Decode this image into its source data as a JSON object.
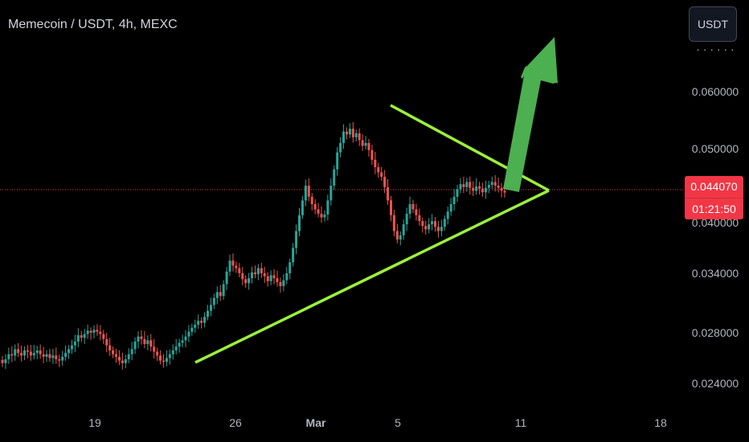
{
  "header": {
    "title": "Memecoin / USDT, 4h, MEXC"
  },
  "toolbar": {
    "currency_label": "USDT"
  },
  "price_tag": {
    "price": "0.044070",
    "timer": "01:21:50"
  },
  "colors": {
    "up": "#26a69a",
    "down": "#ef5350",
    "trendline": "#9cf03c",
    "arrow": "#4caf50",
    "price_line": "#f23645"
  },
  "chart_data": {
    "type": "candlestick",
    "yticks": [
      "0.060000",
      "0.050000",
      "0.040000",
      "0.034000",
      "0.028000",
      "0.024000"
    ],
    "xticks": [
      "19",
      "26",
      "Mar",
      "5",
      "11",
      "18"
    ],
    "last_price": 0.04407,
    "closes": [
      0.0256,
      0.0259,
      0.0263,
      0.0262,
      0.0267,
      0.0264,
      0.0262,
      0.0266,
      0.0265,
      0.0262,
      0.0264,
      0.0266,
      0.0263,
      0.0261,
      0.0263,
      0.026,
      0.0262,
      0.0259,
      0.0258,
      0.0261,
      0.0264,
      0.0267,
      0.027,
      0.0273,
      0.0278,
      0.0276,
      0.0279,
      0.0282,
      0.028,
      0.0283,
      0.0281,
      0.0279,
      0.0275,
      0.027,
      0.0266,
      0.0263,
      0.0261,
      0.0258,
      0.0256,
      0.0259,
      0.0263,
      0.0267,
      0.0273,
      0.0277,
      0.0275,
      0.0271,
      0.0274,
      0.0269,
      0.0265,
      0.0262,
      0.0258,
      0.0257,
      0.026,
      0.0263,
      0.0266,
      0.0269,
      0.0272,
      0.0274,
      0.0277,
      0.0281,
      0.0285,
      0.0288,
      0.0292,
      0.029,
      0.0296,
      0.0302,
      0.0308,
      0.0315,
      0.0321,
      0.0317,
      0.0329,
      0.0342,
      0.0355,
      0.0349,
      0.0346,
      0.034,
      0.0334,
      0.033,
      0.0335,
      0.0341,
      0.0339,
      0.0346,
      0.034,
      0.0337,
      0.0332,
      0.0338,
      0.0335,
      0.0331,
      0.0327,
      0.0333,
      0.034,
      0.0353,
      0.037,
      0.039,
      0.041,
      0.043,
      0.045,
      0.0435,
      0.0425,
      0.0418,
      0.0412,
      0.0407,
      0.0411,
      0.043,
      0.045,
      0.0472,
      0.0495,
      0.051,
      0.053,
      0.0525,
      0.0535,
      0.052,
      0.0527,
      0.0515,
      0.0505,
      0.051,
      0.0498,
      0.0485,
      0.0475,
      0.0468,
      0.0462,
      0.0448,
      0.043,
      0.041,
      0.039,
      0.038,
      0.0385,
      0.0398,
      0.0412,
      0.0425,
      0.0418,
      0.041,
      0.0402,
      0.0396,
      0.0392,
      0.0398,
      0.0402,
      0.0395,
      0.039,
      0.0395,
      0.0405,
      0.0415,
      0.0425,
      0.0435,
      0.0445,
      0.0452,
      0.0448,
      0.0455,
      0.0447,
      0.0443,
      0.0449,
      0.0446,
      0.0441,
      0.0447,
      0.0451,
      0.0455,
      0.045,
      0.0447,
      0.0443,
      0.04407
    ]
  }
}
